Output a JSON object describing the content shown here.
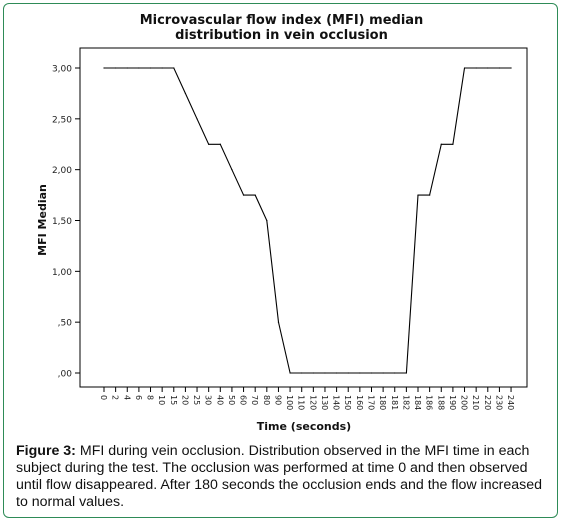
{
  "chart_data": {
    "type": "line",
    "title_lines": [
      "Microvascular flow index (MFI) median",
      "distribution in vein occlusion"
    ],
    "xlabel": "Time (seconds)",
    "ylabel": "MFI Median",
    "ylim": [
      0,
      3
    ],
    "y_ticks": [
      "3,00",
      "2,50",
      "2,00",
      "1,50",
      "1,00",
      ",50",
      ",00"
    ],
    "y_tick_values": [
      3.0,
      2.5,
      2.0,
      1.5,
      1.0,
      0.5,
      0.0
    ],
    "categories": [
      "0",
      "2",
      "4",
      "6",
      "8",
      "10",
      "15",
      "20",
      "25",
      "30",
      "40",
      "50",
      "60",
      "70",
      "80",
      "90",
      "100",
      "110",
      "120",
      "130",
      "140",
      "150",
      "160",
      "170",
      "180",
      "181",
      "182",
      "184",
      "186",
      "188",
      "190",
      "200",
      "210",
      "220",
      "230",
      "240"
    ],
    "values": [
      3.0,
      3.0,
      3.0,
      3.0,
      3.0,
      3.0,
      3.0,
      2.75,
      2.5,
      2.25,
      2.25,
      2.0,
      1.75,
      1.75,
      1.5,
      0.5,
      0.0,
      0.0,
      0.0,
      0.0,
      0.0,
      0.0,
      0.0,
      0.0,
      0.0,
      0.0,
      0.0,
      1.75,
      1.75,
      2.25,
      2.25,
      3.0,
      3.0,
      3.0,
      3.0,
      3.0
    ],
    "grid": false,
    "legend": "none"
  },
  "caption": {
    "label": "Figure 3:",
    "text": "MFI during vein occlusion. Distribution observed in the MFI time in each subject during the test. The occlusion was performed at time 0 and then observed until flow disappeared. After 180 seconds the occlusion ends and the flow increased to normal values."
  },
  "colors": {
    "frame": "#2e8b57",
    "line": "#000000",
    "axis": "#000000"
  }
}
